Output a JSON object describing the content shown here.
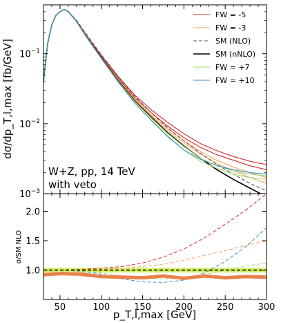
{
  "chart_data": [
    {
      "type": "line",
      "yscale": "log",
      "ylabel": "dσ/dp_T,l,max [fb/GeV]",
      "xlim": [
        30,
        300
      ],
      "ylim": [
        0.001,
        0.5
      ],
      "y_ticks": [
        {
          "value": 0.001,
          "label": "10^-3"
        },
        {
          "value": 0.01,
          "label": "10^-2"
        },
        {
          "value": 0.1,
          "label": "10^-1"
        }
      ],
      "annotation": {
        "line1": "W+Z, pp, 14 TeV",
        "line2": "with veto"
      },
      "legend_position": "top-right",
      "series": [
        {
          "name": "FW = -5",
          "color": "#d62728",
          "style": "solid",
          "x": [
            30,
            35,
            40,
            45,
            50,
            55,
            60,
            70,
            80,
            90,
            100,
            120,
            140,
            160,
            180,
            200,
            220,
            240,
            260,
            280,
            300
          ],
          "y": [
            0.04,
            0.14,
            0.26,
            0.35,
            0.4,
            0.43,
            0.4,
            0.29,
            0.2,
            0.135,
            0.095,
            0.048,
            0.026,
            0.016,
            0.0105,
            0.0072,
            0.0052,
            0.0041,
            0.0034,
            0.0029,
            0.0026
          ]
        },
        {
          "name": "",
          "color": "#d62728",
          "style": "solid",
          "x": [
            30,
            35,
            40,
            45,
            50,
            55,
            60,
            70,
            80,
            90,
            100,
            120,
            140,
            160,
            180,
            200,
            220,
            240,
            260,
            280,
            300
          ],
          "y": [
            0.04,
            0.14,
            0.26,
            0.35,
            0.4,
            0.43,
            0.4,
            0.29,
            0.2,
            0.133,
            0.093,
            0.046,
            0.024,
            0.0145,
            0.0093,
            0.0063,
            0.0046,
            0.0036,
            0.003,
            0.0025,
            0.0022
          ]
        },
        {
          "name": "FW = -3",
          "color": "#ff9f5a",
          "style": "solid",
          "x": [
            30,
            35,
            40,
            45,
            50,
            55,
            60,
            70,
            80,
            90,
            100,
            120,
            140,
            160,
            180,
            200,
            220,
            240,
            260,
            280,
            300
          ],
          "y": [
            0.04,
            0.14,
            0.26,
            0.35,
            0.4,
            0.43,
            0.4,
            0.29,
            0.195,
            0.13,
            0.091,
            0.044,
            0.023,
            0.0135,
            0.0085,
            0.0057,
            0.004,
            0.003,
            0.0024,
            0.002,
            0.0017
          ]
        },
        {
          "name": "",
          "color": "#ff9f5a",
          "style": "solid",
          "x": [
            30,
            35,
            40,
            45,
            50,
            55,
            60,
            70,
            80,
            90,
            100,
            120,
            140,
            160,
            180,
            200,
            220,
            240,
            260,
            280,
            300
          ],
          "y": [
            0.04,
            0.14,
            0.26,
            0.35,
            0.4,
            0.43,
            0.4,
            0.29,
            0.195,
            0.13,
            0.09,
            0.043,
            0.022,
            0.013,
            0.008,
            0.0053,
            0.0037,
            0.0027,
            0.0021,
            0.0017,
            0.0014
          ]
        },
        {
          "name": "SM (NLO)",
          "color": "#555555",
          "style": "dashed",
          "x": [
            30,
            35,
            40,
            45,
            50,
            55,
            60,
            70,
            80,
            90,
            100,
            120,
            140,
            160,
            180,
            200,
            220,
            240,
            260,
            280,
            300
          ],
          "y": [
            0.04,
            0.14,
            0.26,
            0.35,
            0.4,
            0.43,
            0.4,
            0.3,
            0.205,
            0.14,
            0.097,
            0.048,
            0.025,
            0.0145,
            0.0088,
            0.0057,
            0.0038,
            0.0026,
            0.0019,
            0.0014,
            0.0011
          ]
        },
        {
          "name": "SM (nNLO)",
          "color": "#000000",
          "style": "solid",
          "x": [
            30,
            35,
            40,
            45,
            50,
            55,
            60,
            70,
            80,
            90,
            100,
            120,
            140,
            160,
            180,
            200,
            220,
            240,
            260,
            280,
            300
          ],
          "y": [
            0.04,
            0.14,
            0.26,
            0.35,
            0.4,
            0.43,
            0.4,
            0.29,
            0.19,
            0.128,
            0.088,
            0.042,
            0.0215,
            0.0125,
            0.0075,
            0.0048,
            0.0032,
            0.0022,
            0.0016,
            0.0012,
            0.0009
          ]
        },
        {
          "name": "FW = +7",
          "color": "#a6d96a",
          "style": "solid",
          "x": [
            30,
            35,
            40,
            45,
            50,
            55,
            60,
            70,
            80,
            90,
            100,
            120,
            140,
            160,
            180,
            200,
            220,
            240,
            260,
            280,
            300
          ],
          "y": [
            0.04,
            0.14,
            0.26,
            0.35,
            0.4,
            0.43,
            0.4,
            0.29,
            0.19,
            0.126,
            0.086,
            0.041,
            0.021,
            0.0122,
            0.0073,
            0.0047,
            0.0032,
            0.0025,
            0.0021,
            0.0019,
            0.0018
          ]
        },
        {
          "name": "",
          "color": "#a6d96a",
          "style": "solid",
          "x": [
            30,
            35,
            40,
            45,
            50,
            55,
            60,
            70,
            80,
            90,
            100,
            120,
            140,
            160,
            180,
            200,
            220,
            240,
            260,
            280,
            300
          ],
          "y": [
            0.04,
            0.14,
            0.26,
            0.35,
            0.4,
            0.43,
            0.4,
            0.29,
            0.19,
            0.126,
            0.086,
            0.041,
            0.02,
            0.0115,
            0.0068,
            0.0042,
            0.0029,
            0.0023,
            0.0019,
            0.0017,
            0.0016
          ]
        },
        {
          "name": "FW = +10",
          "color": "#3a8fc8",
          "style": "solid",
          "x": [
            30,
            35,
            40,
            45,
            50,
            55,
            60,
            70,
            80,
            90,
            100,
            120,
            140,
            160,
            180,
            200,
            220,
            240,
            260,
            280,
            300
          ],
          "y": [
            0.04,
            0.14,
            0.26,
            0.35,
            0.4,
            0.43,
            0.4,
            0.29,
            0.19,
            0.126,
            0.086,
            0.04,
            0.02,
            0.0113,
            0.0066,
            0.0042,
            0.0031,
            0.0025,
            0.0022,
            0.002,
            0.0019
          ]
        }
      ]
    },
    {
      "type": "line",
      "ylabel": "σ/SM NLO",
      "xlabel": "p_T,l,max [GeV]",
      "xlim": [
        30,
        300
      ],
      "ylim": [
        0.5,
        2.3
      ],
      "x_ticks": [
        50,
        100,
        150,
        200,
        250,
        300
      ],
      "y_ticks": [
        "1.0",
        "1.5",
        "2.0"
      ],
      "series": [
        {
          "name": "FW = -5",
          "color": "#d62728",
          "style": "dashed",
          "x": [
            30,
            50,
            75,
            100,
            125,
            150,
            175,
            200,
            225,
            250,
            275,
            300
          ],
          "y": [
            1.0,
            1.0,
            1.01,
            1.03,
            1.06,
            1.12,
            1.22,
            1.36,
            1.55,
            1.78,
            2.02,
            2.3
          ]
        },
        {
          "name": "FW = -3",
          "color": "#ff9f5a",
          "style": "dashed",
          "x": [
            30,
            50,
            75,
            100,
            125,
            150,
            175,
            200,
            225,
            250,
            275,
            300
          ],
          "y": [
            1.0,
            1.0,
            1.005,
            1.01,
            1.03,
            1.06,
            1.1,
            1.17,
            1.25,
            1.33,
            1.42,
            1.5
          ]
        },
        {
          "name": "FW = +10",
          "color": "#3a8fc8",
          "style": "dashed",
          "x": [
            30,
            50,
            75,
            100,
            125,
            150,
            175,
            200,
            225,
            250,
            275,
            300
          ],
          "y": [
            1.0,
            1.0,
            0.98,
            0.93,
            0.85,
            0.8,
            0.79,
            0.83,
            0.95,
            1.15,
            1.4,
            1.72
          ]
        },
        {
          "name": "FW = +7",
          "color": "#a6d96a",
          "style": "dashed",
          "x": [
            30,
            50,
            75,
            100,
            125,
            150,
            175,
            200,
            225,
            250,
            275,
            300
          ],
          "y": [
            1.0,
            1.0,
            0.985,
            0.95,
            0.9,
            0.86,
            0.85,
            0.87,
            0.92,
            1.0,
            1.07,
            1.12
          ]
        },
        {
          "name": "SM (NLO)",
          "color": "#555555",
          "style": "dashed",
          "x": [
            30,
            300
          ],
          "y": [
            1.0,
            1.0
          ]
        },
        {
          "name": "SM (nNLO)",
          "color": "#e8804a",
          "style": "band",
          "x": [
            30,
            50,
            75,
            100,
            125,
            150,
            175,
            200,
            225,
            250,
            275,
            300
          ],
          "y": [
            0.92,
            0.94,
            0.93,
            0.89,
            0.88,
            0.87,
            0.9,
            0.86,
            0.9,
            0.87,
            0.89,
            0.88
          ]
        }
      ]
    }
  ]
}
